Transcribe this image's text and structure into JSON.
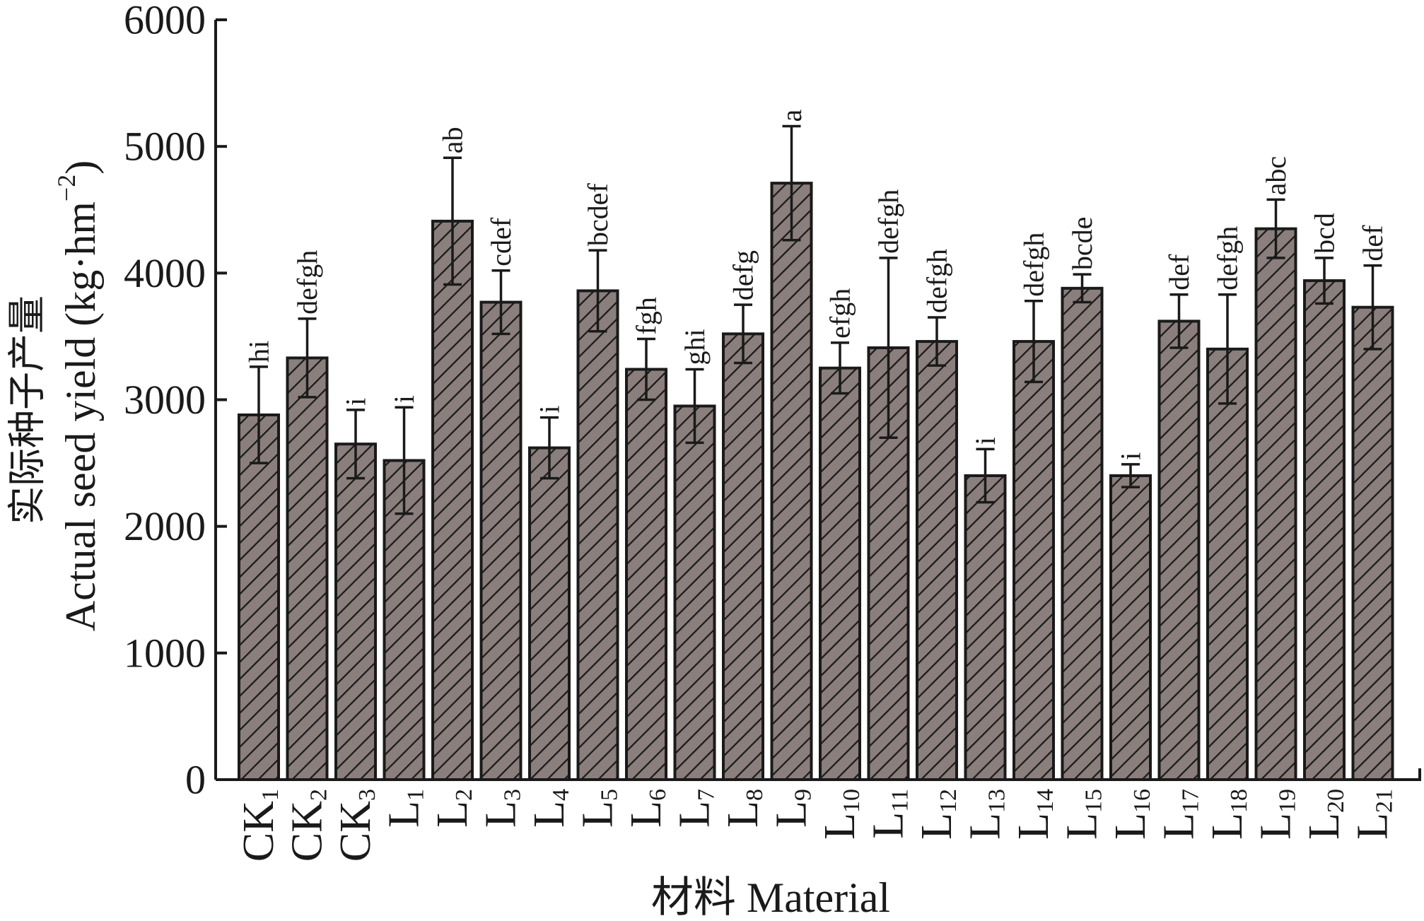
{
  "chart_data": {
    "type": "bar",
    "ylabel_cn": "实际种子产量",
    "ylabel_en": "Actual seed yield (kg·hm",
    "ylabel_unit_sup": "−2",
    "ylabel_close": ")",
    "xlabel": "材料 Material",
    "ylim": [
      0,
      6000
    ],
    "yticks": [
      0,
      1000,
      2000,
      3000,
      4000,
      5000,
      6000
    ],
    "categories": [
      {
        "base": "CK",
        "sub": "1"
      },
      {
        "base": "CK",
        "sub": "2"
      },
      {
        "base": "CK",
        "sub": "3"
      },
      {
        "base": "L",
        "sub": "1"
      },
      {
        "base": "L",
        "sub": "2"
      },
      {
        "base": "L",
        "sub": "3"
      },
      {
        "base": "L",
        "sub": "4"
      },
      {
        "base": "L",
        "sub": "5"
      },
      {
        "base": "L",
        "sub": "6"
      },
      {
        "base": "L",
        "sub": "7"
      },
      {
        "base": "L",
        "sub": "8"
      },
      {
        "base": "L",
        "sub": "9"
      },
      {
        "base": "L",
        "sub": "10"
      },
      {
        "base": "L",
        "sub": "11"
      },
      {
        "base": "L",
        "sub": "12"
      },
      {
        "base": "L",
        "sub": "13"
      },
      {
        "base": "L",
        "sub": "14"
      },
      {
        "base": "L",
        "sub": "15"
      },
      {
        "base": "L",
        "sub": "16"
      },
      {
        "base": "L",
        "sub": "17"
      },
      {
        "base": "L",
        "sub": "18"
      },
      {
        "base": "L",
        "sub": "19"
      },
      {
        "base": "L",
        "sub": "20"
      },
      {
        "base": "L",
        "sub": "21"
      }
    ],
    "values": [
      2880,
      3330,
      2650,
      2520,
      4410,
      3770,
      2620,
      3860,
      3240,
      2950,
      3520,
      4710,
      3250,
      3410,
      3460,
      2400,
      3460,
      3880,
      2400,
      3620,
      3400,
      4350,
      3940,
      3730
    ],
    "errors": [
      380,
      310,
      270,
      420,
      500,
      250,
      240,
      320,
      240,
      290,
      230,
      450,
      200,
      710,
      190,
      210,
      320,
      110,
      90,
      210,
      430,
      230,
      180,
      330
    ],
    "significance": [
      "hi",
      "defgh",
      "i",
      "i",
      "ab",
      "cdef",
      "i",
      "bcdef",
      "fgh",
      "ghi",
      "defg",
      "a",
      "efgh",
      "defgh",
      "defgh",
      "i",
      "defgh",
      "bcde",
      "i",
      "def",
      "defgh",
      "abc",
      "bcd",
      "def"
    ],
    "bar_color": "#8a7f7c",
    "hatch_color": "#1a1a1a"
  }
}
